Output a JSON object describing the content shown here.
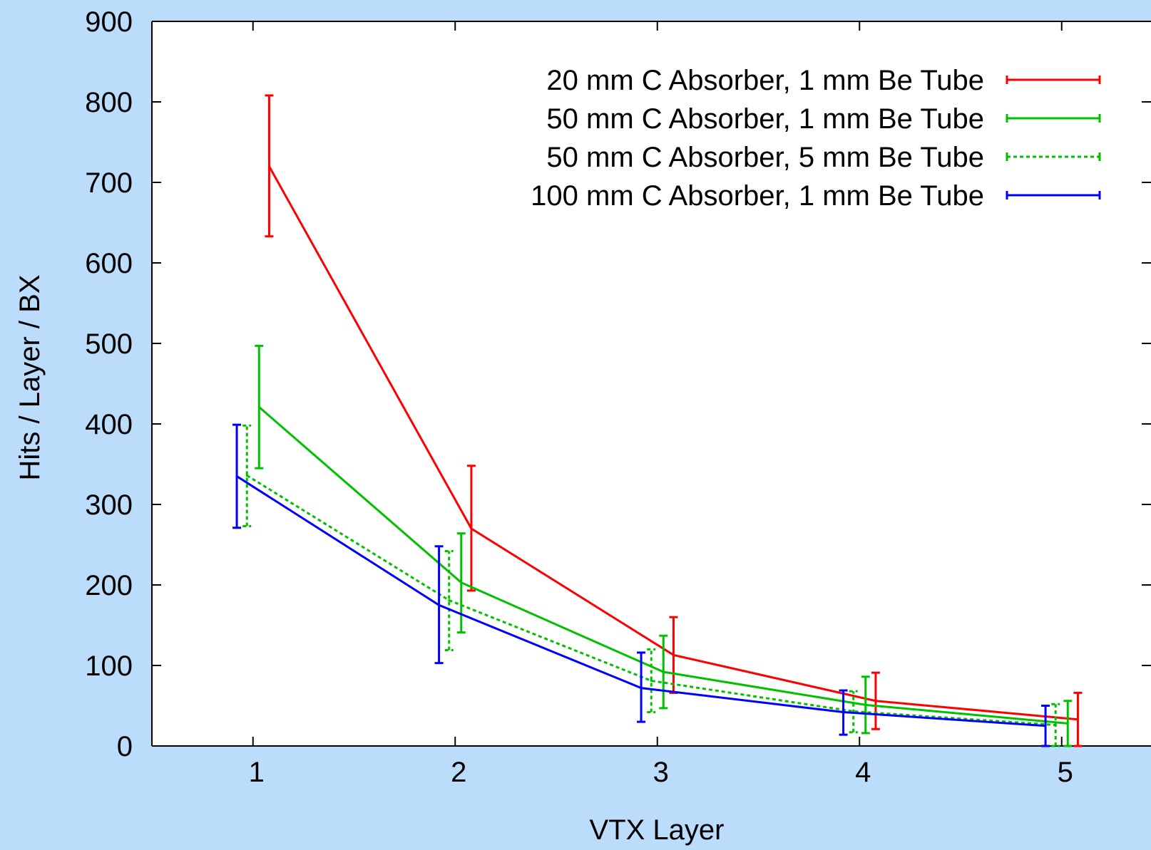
{
  "chart_data": {
    "type": "line",
    "title": "",
    "xlabel": "VTX Layer",
    "ylabel": "Hits / Layer / BX",
    "xlim": [
      0.5,
      5.5
    ],
    "ylim": [
      0,
      900
    ],
    "x_ticks": [
      "1",
      "2",
      "3",
      "4",
      "5"
    ],
    "y_ticks": [
      "0",
      "100",
      "200",
      "300",
      "400",
      "500",
      "600",
      "700",
      "800",
      "900"
    ],
    "grid": false,
    "legend_position": "top-right",
    "error_bars": true,
    "series": [
      {
        "name": "20 mm C Absorber, 1 mm Be Tube",
        "color": "#ff0000",
        "dash": "solid",
        "x": [
          1.08,
          2.08,
          3.08,
          4.08,
          5.08
        ],
        "y": [
          720,
          270,
          113,
          56,
          33
        ],
        "yerr_low": [
          633,
          193,
          66,
          21,
          0
        ],
        "yerr_high": [
          808,
          348,
          160,
          91,
          66
        ]
      },
      {
        "name": "50 mm C Absorber, 1 mm Be Tube",
        "color": "#00c000",
        "dash": "solid",
        "x": [
          1.03,
          2.03,
          3.03,
          4.03,
          5.03
        ],
        "y": [
          421,
          203,
          92,
          51,
          28
        ],
        "yerr_low": [
          345,
          141,
          47,
          16,
          0
        ],
        "yerr_high": [
          497,
          264,
          137,
          86,
          56
        ]
      },
      {
        "name": "50 mm C Absorber, 5 mm Be Tube",
        "color": "#00c000",
        "dash": "dotted",
        "x": [
          0.97,
          1.97,
          2.97,
          3.97,
          4.97
        ],
        "y": [
          336,
          181,
          81,
          43,
          26
        ],
        "yerr_low": [
          273,
          119,
          42,
          17,
          0
        ],
        "yerr_high": [
          398,
          242,
          120,
          68,
          52
        ]
      },
      {
        "name": "100 mm C Absorber, 1 mm Be Tube",
        "color": "#0000ff",
        "dash": "solid",
        "x": [
          0.92,
          1.92,
          2.92,
          3.92,
          4.92
        ],
        "y": [
          335,
          175,
          72,
          42,
          25
        ],
        "yerr_low": [
          271,
          103,
          30,
          14,
          0
        ],
        "yerr_high": [
          399,
          248,
          116,
          69,
          50
        ]
      }
    ]
  }
}
